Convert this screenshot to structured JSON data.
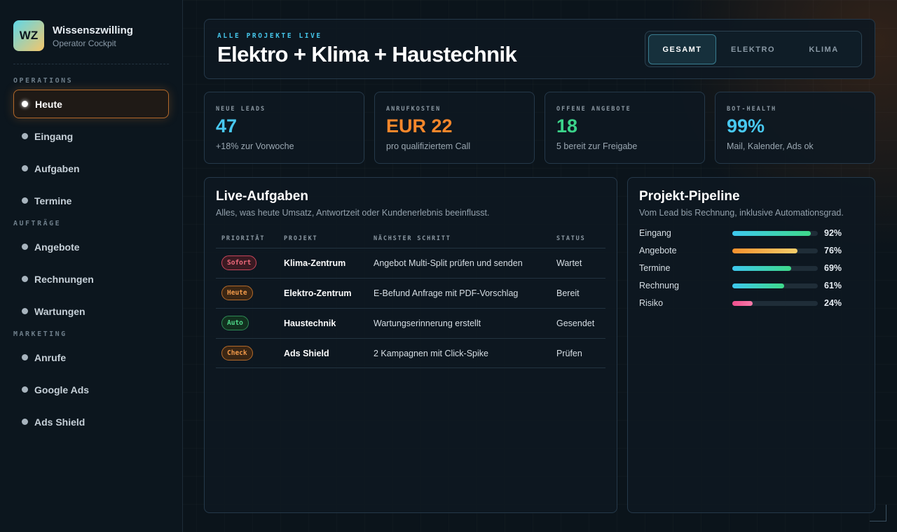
{
  "brand": {
    "logo": "WZ",
    "name": "Wissenszwilling",
    "subtitle": "Operator Cockpit"
  },
  "nav": [
    {
      "section": "OPERATIONS",
      "items": [
        "Heute",
        "Eingang",
        "Aufgaben",
        "Termine"
      ]
    },
    {
      "section": "AUFTRÄGE",
      "items": [
        "Angebote",
        "Rechnungen",
        "Wartungen"
      ]
    },
    {
      "section": "MARKETING",
      "items": [
        "Anrufe",
        "Google Ads",
        "Ads Shield"
      ]
    }
  ],
  "header": {
    "eyebrow": "ALLE PROJEKTE LIVE",
    "title": "Elektro + Klima + Haustechnik",
    "tabs": [
      "GESAMT",
      "ELEKTRO",
      "KLIMA"
    ]
  },
  "kpis": [
    {
      "label": "NEUE LEADS",
      "value": "47",
      "note": "+18% zur Vorwoche"
    },
    {
      "label": "ANRUFKOSTEN",
      "value": "EUR 22",
      "note": "pro qualifiziertem Call"
    },
    {
      "label": "OFFENE ANGEBOTE",
      "value": "18",
      "note": "5 bereit zur Freigabe"
    },
    {
      "label": "BOT-HEALTH",
      "value": "99%",
      "note": "Mail, Kalender, Ads ok"
    }
  ],
  "tasks": {
    "title": "Live-Aufgaben",
    "subtitle": "Alles, was heute Umsatz, Antwortzeit oder Kundenerlebnis beeinflusst.",
    "columns": [
      "PRIORITÄT",
      "PROJEKT",
      "NÄCHSTER SCHRITT",
      "STATUS"
    ],
    "rows": [
      [
        "Sofort",
        "Klima-Zentrum",
        "Angebot Multi-Split prüfen und senden",
        "Wartet"
      ],
      [
        "Heute",
        "Elektro-Zentrum",
        "E-Befund Anfrage mit PDF-Vorschlag",
        "Bereit"
      ],
      [
        "Auto",
        "Haustechnik",
        "Wartungserinnerung erstellt",
        "Gesendet"
      ],
      [
        "Check",
        "Ads Shield",
        "2 Kampagnen mit Click-Spike",
        "Prüfen"
      ]
    ]
  },
  "pipeline": {
    "title": "Projekt-Pipeline",
    "subtitle": "Vom Lead bis Rechnung, inklusive Automationsgrad.",
    "rows": [
      {
        "name": "Eingang",
        "value": 92,
        "value_label": "92%"
      },
      {
        "name": "Angebote",
        "value": 76,
        "value_label": "76%"
      },
      {
        "name": "Termine",
        "value": 69,
        "value_label": "69%"
      },
      {
        "name": "Rechnung",
        "value": 61,
        "value_label": "61%"
      },
      {
        "name": "Risiko",
        "value": 24,
        "value_label": "24%"
      }
    ]
  }
}
